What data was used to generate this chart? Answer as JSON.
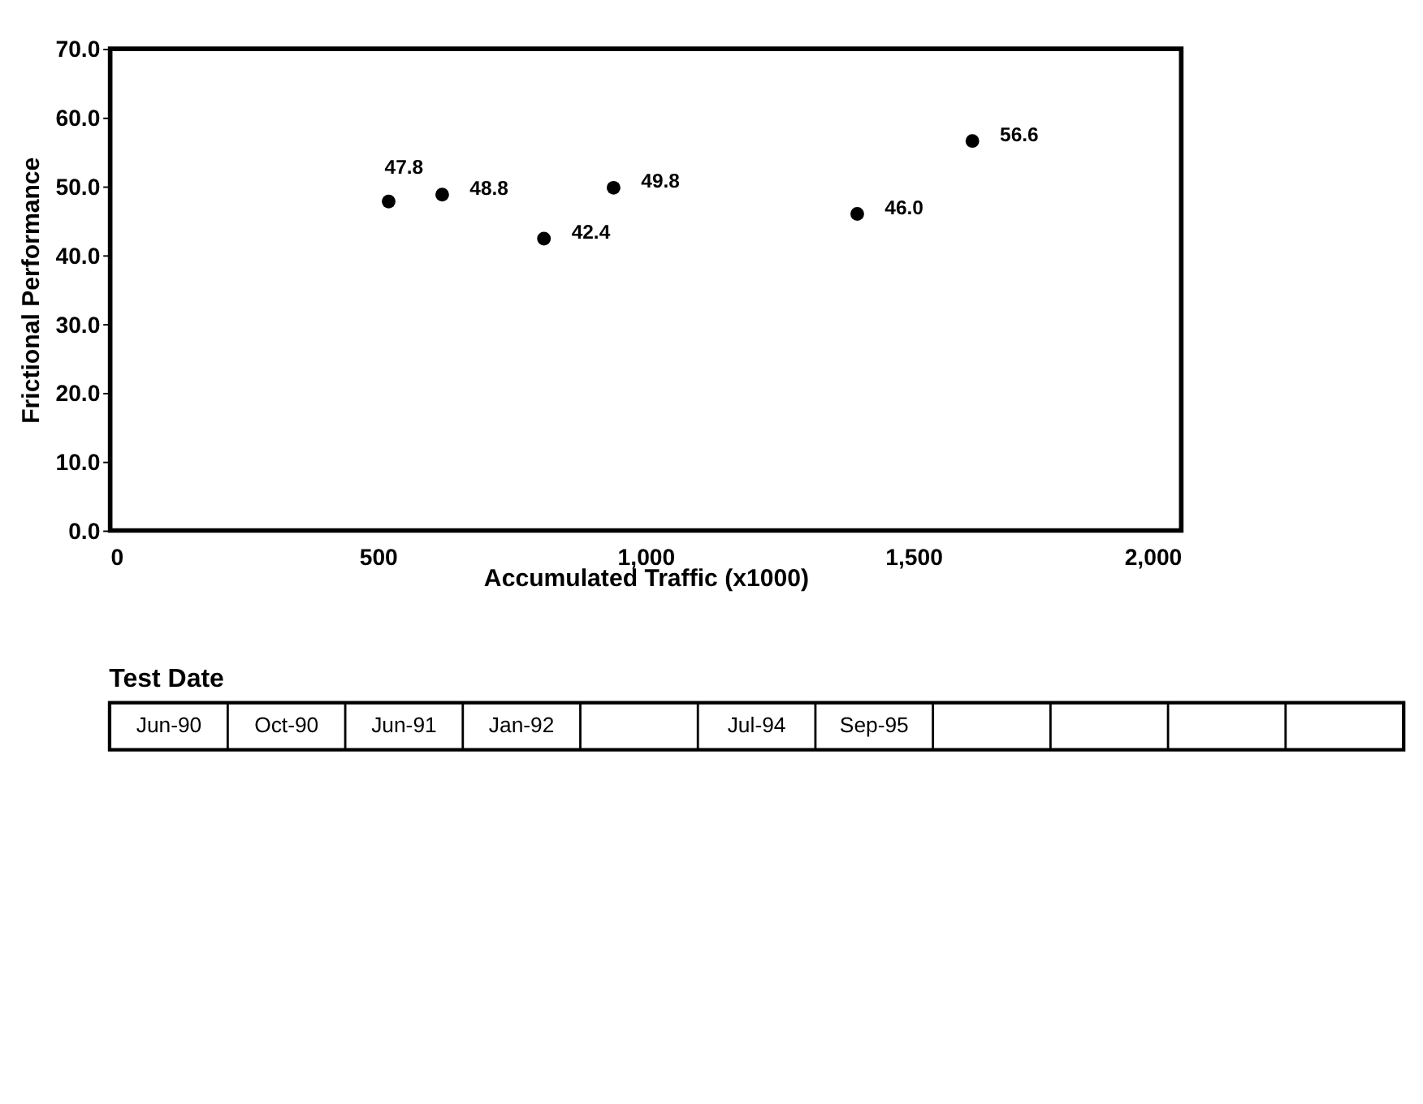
{
  "chart_data": [
    {
      "type": "scatter",
      "xlabel": "Accumulated Traffic (x1000)",
      "ylabel": "Frictional Performance",
      "x": [
        520,
        620,
        810,
        940,
        1395,
        1610
      ],
      "values": [
        47.8,
        48.8,
        42.4,
        49.8,
        46.0,
        56.6
      ],
      "value_labels": [
        "47.8",
        "48.8",
        "42.4",
        "49.8",
        "46.0",
        "56.6"
      ],
      "color": "#000000",
      "marker": "circle",
      "grid": false,
      "xlim": [
        0,
        2000
      ],
      "xticks": [
        0,
        {
          "value": 500,
          "label": "500"
        },
        {
          "value": 1000,
          "label": "1,000"
        },
        {
          "value": 1500,
          "label": "1,500"
        },
        {
          "value": 2000,
          "label": "2,000"
        }
      ],
      "ylim": [
        0,
        70
      ],
      "yticks": [
        {
          "value": 0,
          "label": "0.0"
        },
        {
          "value": 10,
          "label": "10.0"
        },
        {
          "value": 20,
          "label": "20.0"
        },
        {
          "value": 30,
          "label": "30.0"
        },
        {
          "value": 40,
          "label": "40.0"
        },
        {
          "value": 50,
          "label": "50.0"
        },
        {
          "value": 60,
          "label": "60.0"
        },
        {
          "value": 70,
          "label": "70.0"
        }
      ]
    },
    {
      "type": "other",
      "title": "Test Date",
      "categories": [
        "Jun-90",
        "Oct-90",
        "Jun-91",
        "Jan-92",
        null,
        "Jul-94",
        "Sep-95",
        null,
        null,
        null,
        null
      ]
    }
  ]
}
